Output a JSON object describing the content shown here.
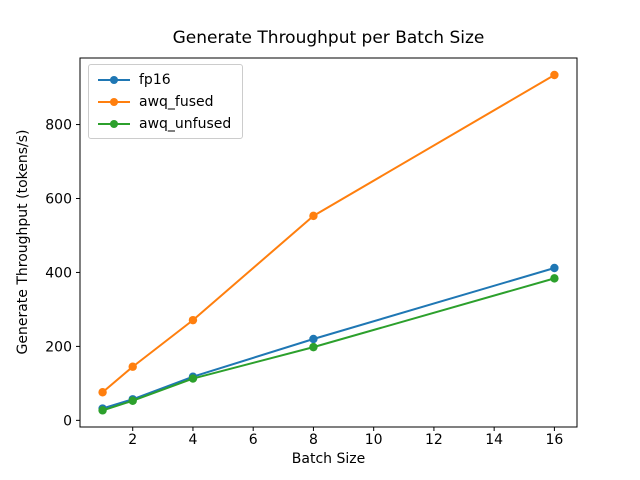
{
  "figure": {
    "background": "#ffffff",
    "text_color": "#000000",
    "legend_border_color": "#cccccc"
  },
  "chart_data": {
    "type": "line",
    "title": "Generate Throughput per Batch Size",
    "xlabel": "Batch Size",
    "ylabel": "Generate Throughput (tokens/s)",
    "x": [
      1,
      2,
      4,
      8,
      16
    ],
    "series": [
      {
        "name": "fp16",
        "color": "#1f77b4",
        "values": [
          32,
          57,
          118,
          220,
          412
        ]
      },
      {
        "name": "awq_fused",
        "color": "#ff7f0e",
        "values": [
          76,
          145,
          271,
          553,
          934
        ]
      },
      {
        "name": "awq_unfused",
        "color": "#2ca02c",
        "values": [
          27,
          53,
          113,
          198,
          384
        ]
      }
    ],
    "xticks": [
      2,
      4,
      6,
      8,
      10,
      12,
      14,
      16
    ],
    "yticks": [
      0,
      200,
      400,
      600,
      800
    ],
    "xlim": [
      0.25,
      16.75
    ],
    "ylim": [
      -18,
      980
    ],
    "grid": false,
    "marker": "o",
    "legend_position": "upper left"
  }
}
